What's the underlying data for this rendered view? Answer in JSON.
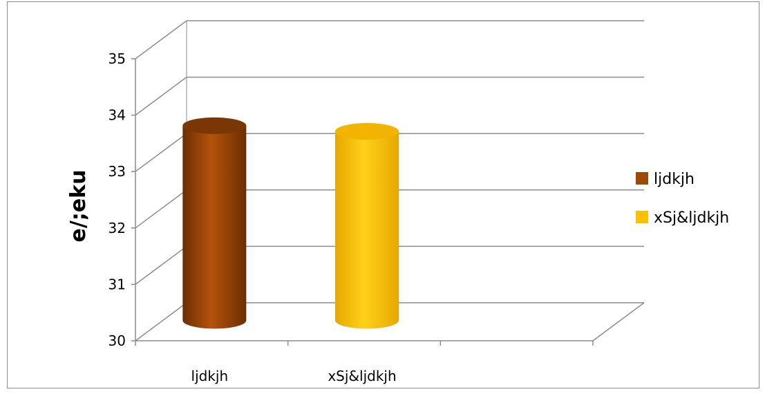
{
  "chart_data": {
    "type": "bar",
    "style": "3d-cylinder",
    "categories": [
      "ljdkjh",
      "xSj&ljdkjh",
      ""
    ],
    "series": [
      {
        "name": "ljdkjh",
        "color": "#9c4a07",
        "values": [
          33.5,
          null,
          null
        ]
      },
      {
        "name": "xSj&ljdkjh",
        "color": "#ffc000",
        "values": [
          null,
          33.4,
          null
        ]
      }
    ],
    "ylabel": "e/;eku",
    "xlabel": "",
    "ylim": [
      30,
      35
    ],
    "yticks": [
      30,
      31,
      32,
      33,
      34,
      35
    ],
    "grid": true,
    "legend_position": "right"
  }
}
